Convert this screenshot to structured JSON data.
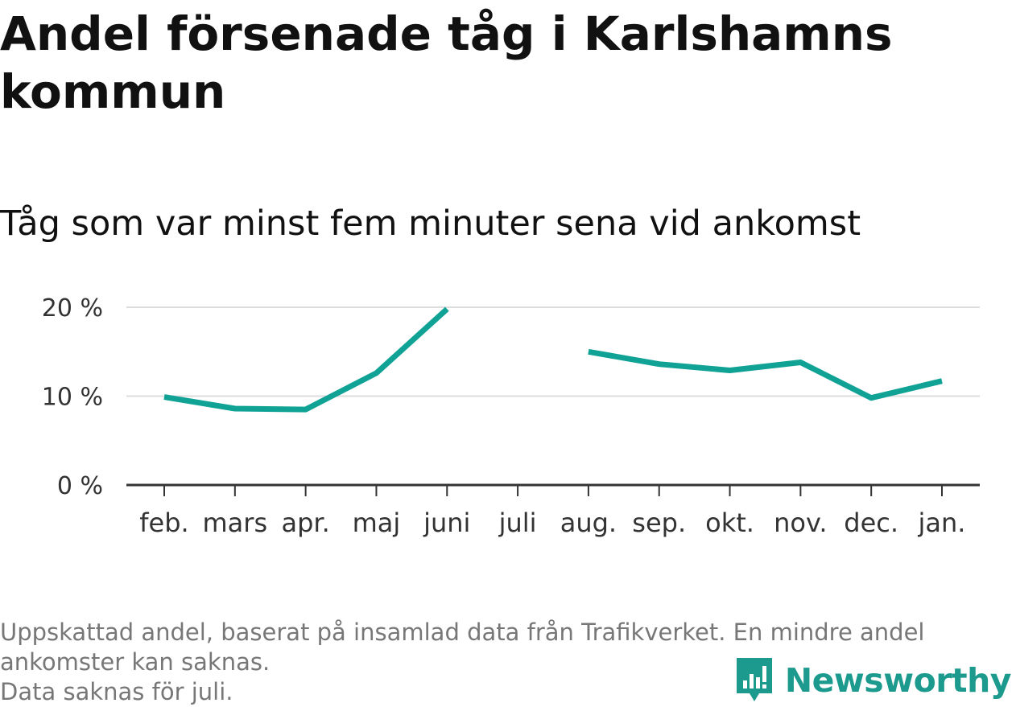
{
  "title": "Andel försenade tåg i Karlshamns kommun",
  "subtitle": "Tåg som var minst fem minuter sena vid ankomst",
  "footnote": {
    "line1": "Uppskattad andel, baserat på insamlad data från Trafikverket. En mindre andel",
    "line2": "ankomster kan saknas.",
    "line3": "Data saknas för juli."
  },
  "brand": {
    "name": "Newsworthy",
    "icon": "newsworthy-logo-icon",
    "color": "#1c9a8e"
  },
  "chart_data": {
    "type": "line",
    "categories": [
      "feb.",
      "mars",
      "apr.",
      "maj",
      "juni",
      "juli",
      "aug.",
      "sep.",
      "okt.",
      "nov.",
      "dec.",
      "jan."
    ],
    "series": [
      {
        "values": [
          9.9,
          8.6,
          8.5,
          12.6,
          19.8,
          null,
          15.0,
          13.6,
          12.9,
          13.8,
          9.8,
          11.7
        ],
        "color": "#10a295"
      }
    ],
    "yticks": [
      "0 %",
      "10 %",
      "20 %"
    ],
    "ytick_values": [
      0,
      10,
      20
    ],
    "ylim": [
      0,
      20
    ],
    "grid": true,
    "legend": "none"
  }
}
